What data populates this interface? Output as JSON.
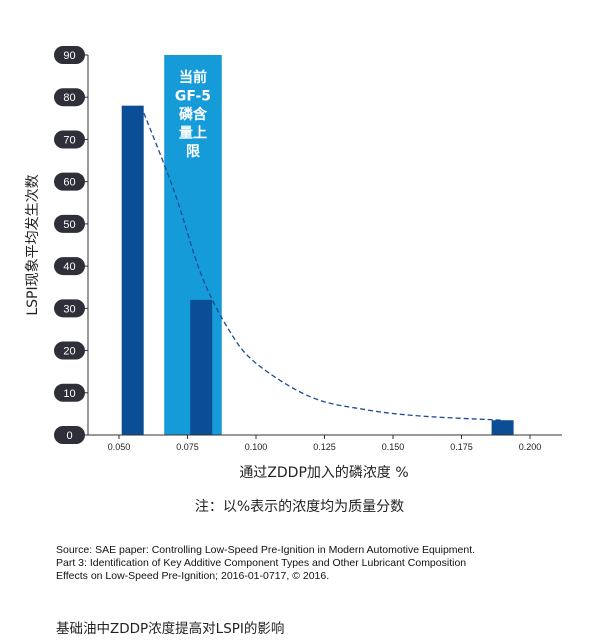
{
  "chart_data": {
    "type": "bar",
    "x": [
      0.055,
      0.08,
      0.19
    ],
    "values": [
      78,
      32,
      3.5
    ],
    "bar_color": "#0B4E96",
    "xlabel": "通过ZDDP加入的磷浓度 %",
    "ylabel": "LSPI现象平均发生次数",
    "ylim": [
      0,
      90
    ],
    "xlim": [
      0.04,
      0.213
    ],
    "x_ticks": [
      "0.050",
      "0.075",
      "0.100",
      "0.125",
      "0.150",
      "0.175",
      "0.200"
    ],
    "y_ticks": [
      "0",
      "10",
      "20",
      "30",
      "40",
      "50",
      "60",
      "70",
      "80",
      "90"
    ],
    "grid": false,
    "trend_line": {
      "style": "dashed",
      "color": "#1A4B94",
      "points": [
        [
          0.058,
          78
        ],
        [
          0.07,
          58
        ],
        [
          0.08,
          38
        ],
        [
          0.09,
          25
        ],
        [
          0.1,
          17
        ],
        [
          0.12,
          9
        ],
        [
          0.14,
          6
        ],
        [
          0.16,
          4.5
        ],
        [
          0.19,
          3.5
        ]
      ]
    },
    "highlight_band": {
      "x_range": [
        0.0665,
        0.0875
      ],
      "color": "#169BD9",
      "label_lines": [
        "当前",
        "GF-5",
        "磷含",
        "量上",
        "限"
      ]
    }
  },
  "note": "注：以%表示的浓度均为质量分数",
  "source_lines": [
    "Source: SAE paper: Controlling Low-Speed Pre-Ignition in Modern Automotive Equipment.",
    "Part 3: Identification of Key Additive Component Types and Other Lubricant Composition",
    "Effects on Low-Speed Pre-Ignition; 2016-01-0717, © 2016."
  ],
  "caption": "基础油中ZDDP浓度提高对LSPI的影响"
}
